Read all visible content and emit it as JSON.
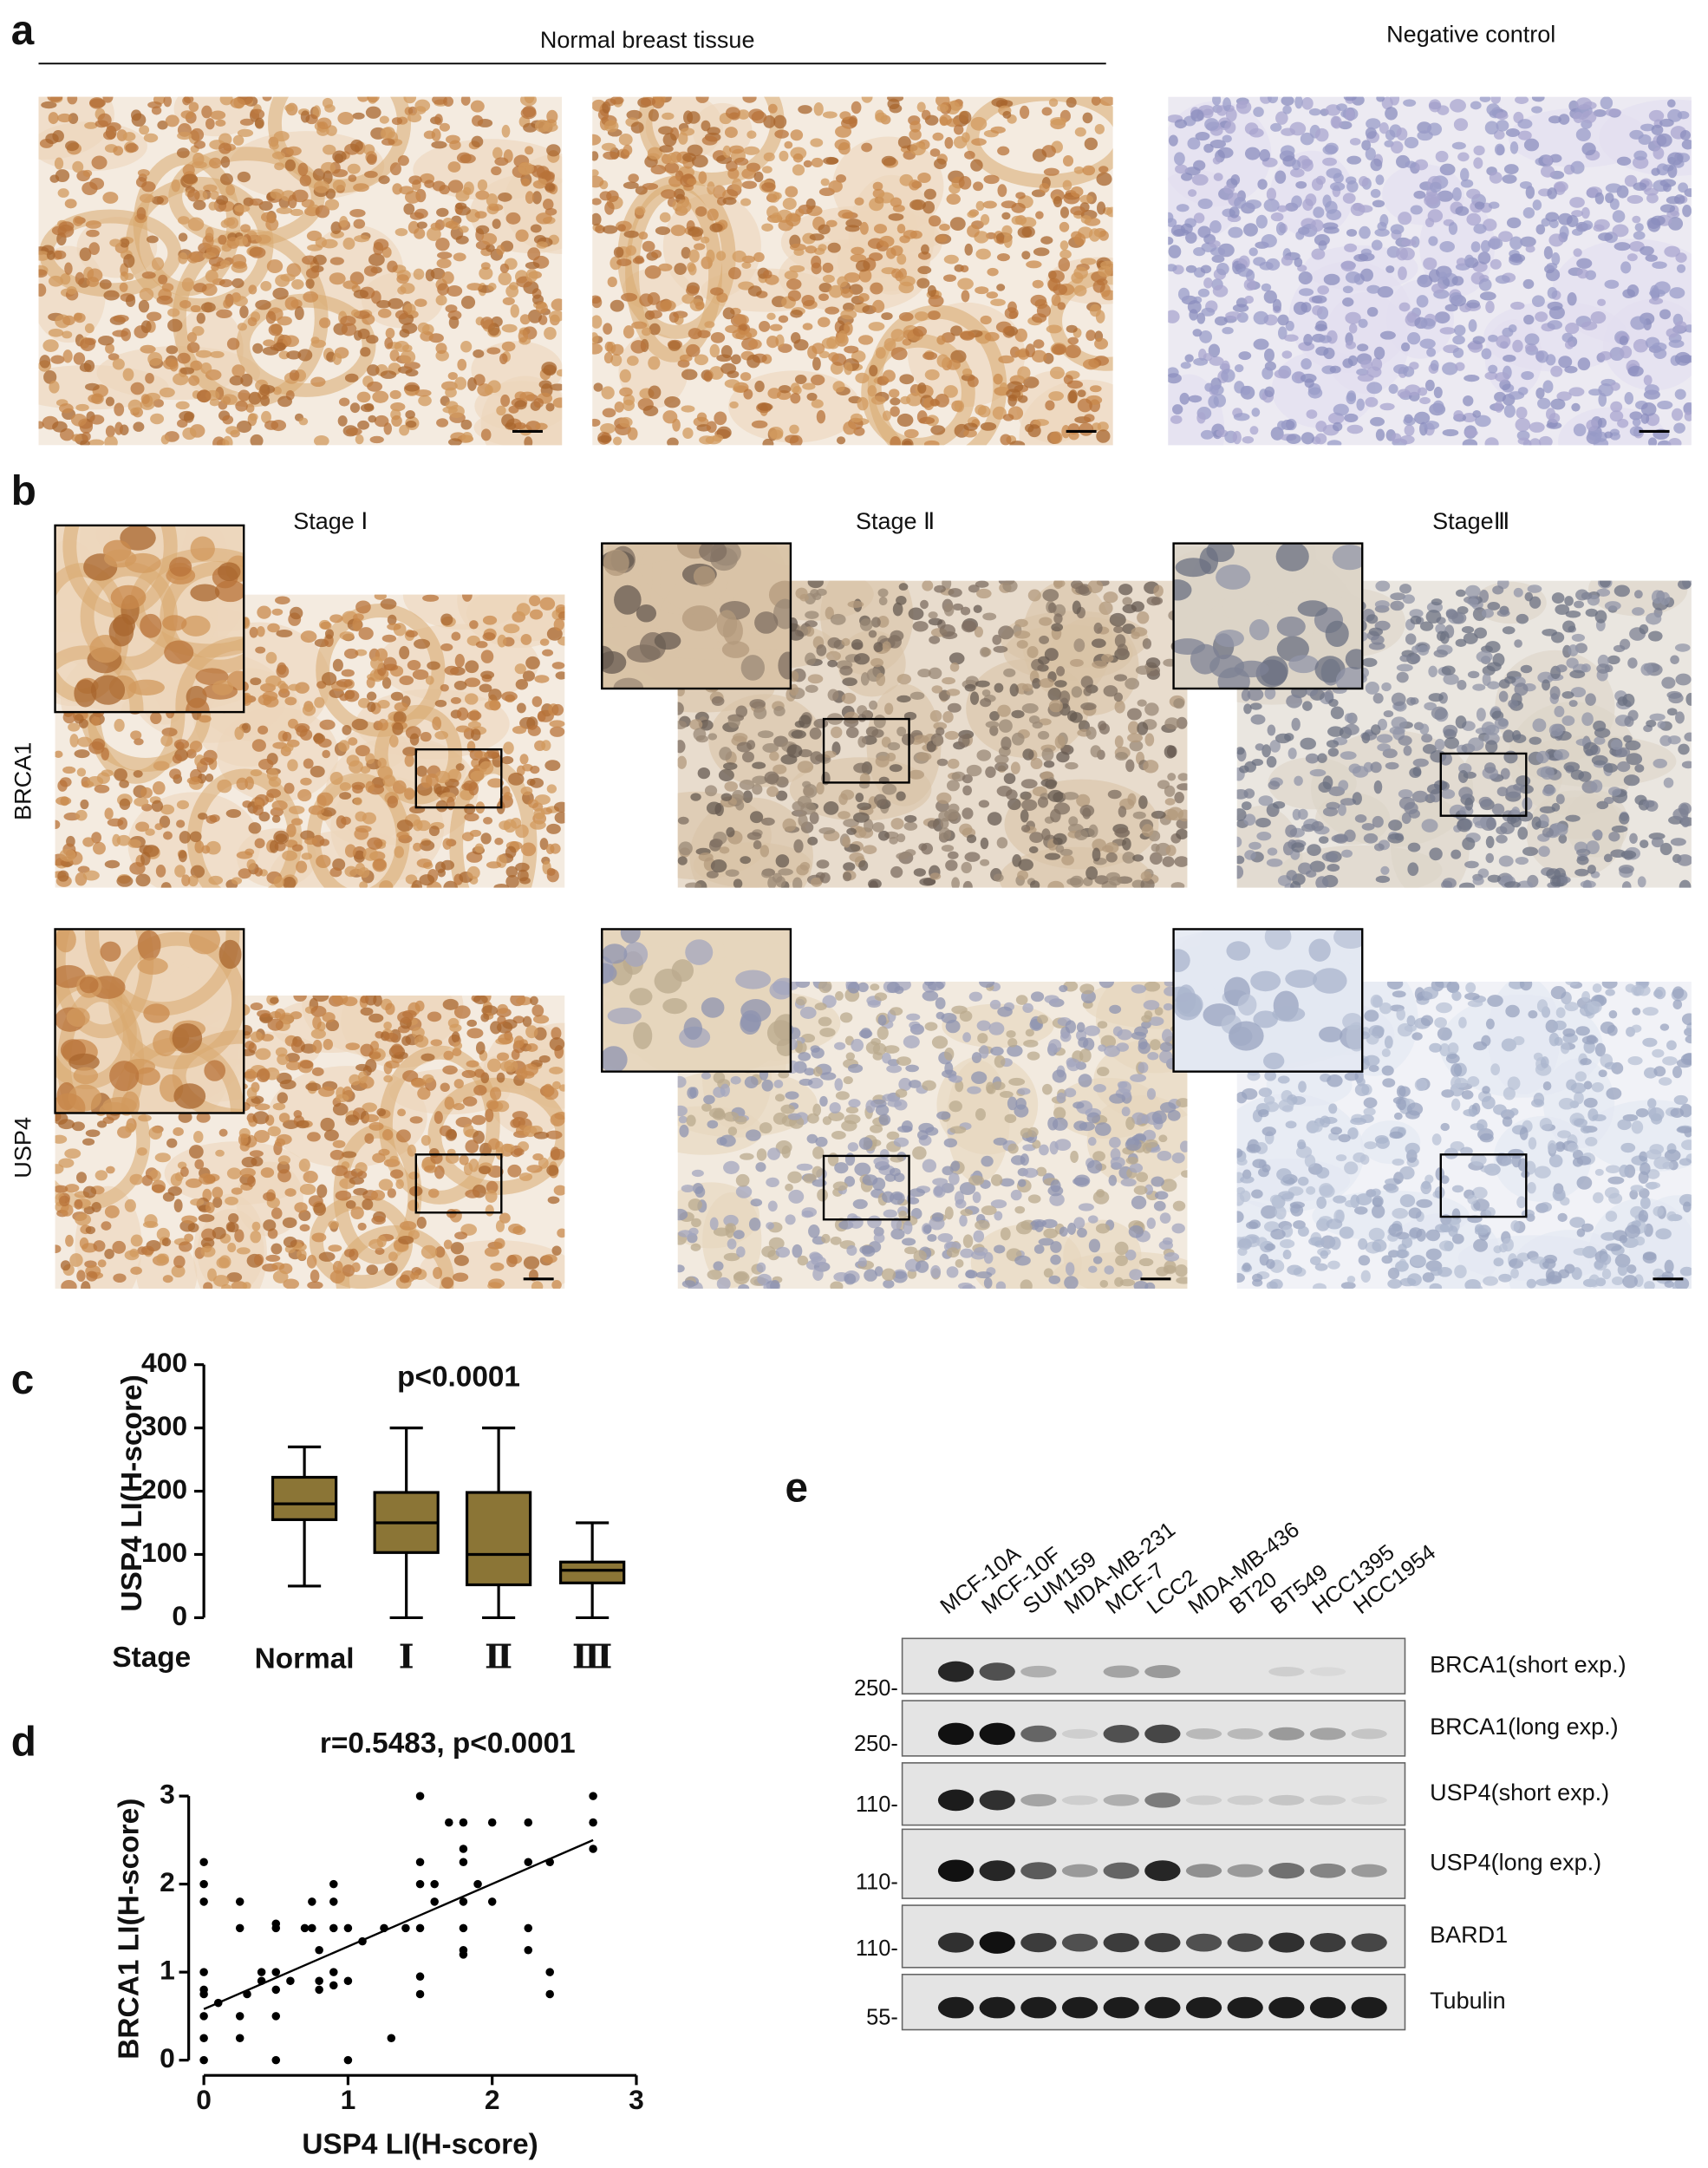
{
  "panel_labels": [
    "a",
    "b",
    "c",
    "d",
    "e"
  ],
  "panel_a": {
    "group_title": "Normal breast tissue",
    "control_title": "Negative control"
  },
  "panel_b": {
    "columns": [
      "Stage Ⅰ",
      "Stage Ⅱ",
      "StageⅢ"
    ],
    "rows": [
      "BRCA1",
      "USP4"
    ]
  },
  "chart_data": [
    {
      "type": "box",
      "ylabel": "USP4 LI(H-score)",
      "xlabel": "Stage",
      "annotation": "p<0.0001",
      "categories": [
        "Normal",
        "Ⅰ",
        "Ⅱ",
        "Ⅲ"
      ],
      "min": [
        50,
        0,
        0,
        0
      ],
      "q1": [
        155,
        103,
        52,
        55
      ],
      "median": [
        180,
        150,
        100,
        75
      ],
      "q3": [
        222,
        198,
        198,
        88
      ],
      "max": [
        270,
        300,
        300,
        150
      ],
      "color": "#8b7536",
      "ylim": [
        0,
        400
      ],
      "yticks": [
        0,
        100,
        200,
        300,
        400
      ]
    },
    {
      "type": "scatter",
      "xlabel": "USP4 LI(H-score)",
      "ylabel": "BRCA1 LI(H-score)",
      "annotation": "r=0.5483, p<0.0001",
      "x": [
        0,
        0,
        0,
        0,
        0,
        0,
        0,
        0,
        0,
        0.1,
        0.25,
        0.25,
        0.25,
        0.25,
        0.3,
        0.4,
        0.4,
        0.5,
        0.5,
        0.5,
        0.5,
        0.5,
        0.5,
        0.6,
        0.7,
        0.75,
        0.75,
        0.8,
        0.8,
        0.8,
        0.9,
        0.9,
        0.9,
        0.9,
        0.9,
        1.0,
        1.0,
        1.0,
        1.1,
        1.25,
        1.3,
        1.4,
        1.5,
        1.5,
        1.5,
        1.5,
        1.5,
        1.5,
        1.6,
        1.6,
        1.7,
        1.8,
        1.8,
        1.8,
        1.8,
        1.8,
        1.8,
        1.8,
        1.9,
        2.0,
        2.0,
        2.25,
        2.25,
        2.25,
        2.25,
        2.4,
        2.4,
        2.4,
        2.7,
        2.7,
        2.7
      ],
      "values": [
        2.25,
        2.0,
        1.8,
        1.0,
        0.8,
        0.75,
        0.5,
        0.25,
        0,
        0.65,
        1.8,
        1.5,
        0.5,
        0.25,
        0.75,
        0.9,
        1.0,
        1.5,
        1.0,
        0.8,
        0.5,
        0,
        1.55,
        0.9,
        1.5,
        1.8,
        1.5,
        1.25,
        0.9,
        0.8,
        1.8,
        1.5,
        1.0,
        0.85,
        2.0,
        1.5,
        0.9,
        0,
        1.35,
        1.5,
        0.25,
        1.5,
        3.0,
        2.25,
        2.0,
        1.5,
        0.95,
        0.75,
        2.0,
        1.8,
        2.7,
        2.7,
        2.4,
        2.25,
        1.8,
        1.5,
        1.25,
        1.2,
        2.0,
        2.7,
        1.8,
        2.7,
        2.25,
        1.5,
        1.25,
        2.25,
        1.0,
        0.75,
        3.0,
        2.7,
        2.4
      ],
      "trend_line": {
        "x": [
          0,
          2.7
        ],
        "y": [
          0.58,
          2.5
        ]
      },
      "color": "#000000",
      "xlim": [
        0,
        3
      ],
      "xticks": [
        0,
        1,
        2,
        3
      ],
      "ylim": [
        0,
        3
      ],
      "yticks": [
        0,
        1,
        2,
        3
      ]
    }
  ],
  "panel_e": {
    "cell_lines": [
      "MCF-10A",
      "MCF-10F",
      "SUM159",
      "MDA-MB-231",
      "MCF-7",
      "LCC2",
      "MDA-MB-436",
      "BT20",
      "BT549",
      "HCC1395",
      "HCC1954"
    ],
    "blots": [
      {
        "label": "BRCA1(short exp.)",
        "marker": "250-"
      },
      {
        "label": "BRCA1(long exp.)",
        "marker": "250-"
      },
      {
        "label": "USP4(short exp.)",
        "marker": "110-"
      },
      {
        "label": "USP4(long exp.)",
        "marker": "110-"
      },
      {
        "label": "BARD1",
        "marker": "110-"
      },
      {
        "label": "Tubulin",
        "marker": "55-"
      }
    ]
  }
}
